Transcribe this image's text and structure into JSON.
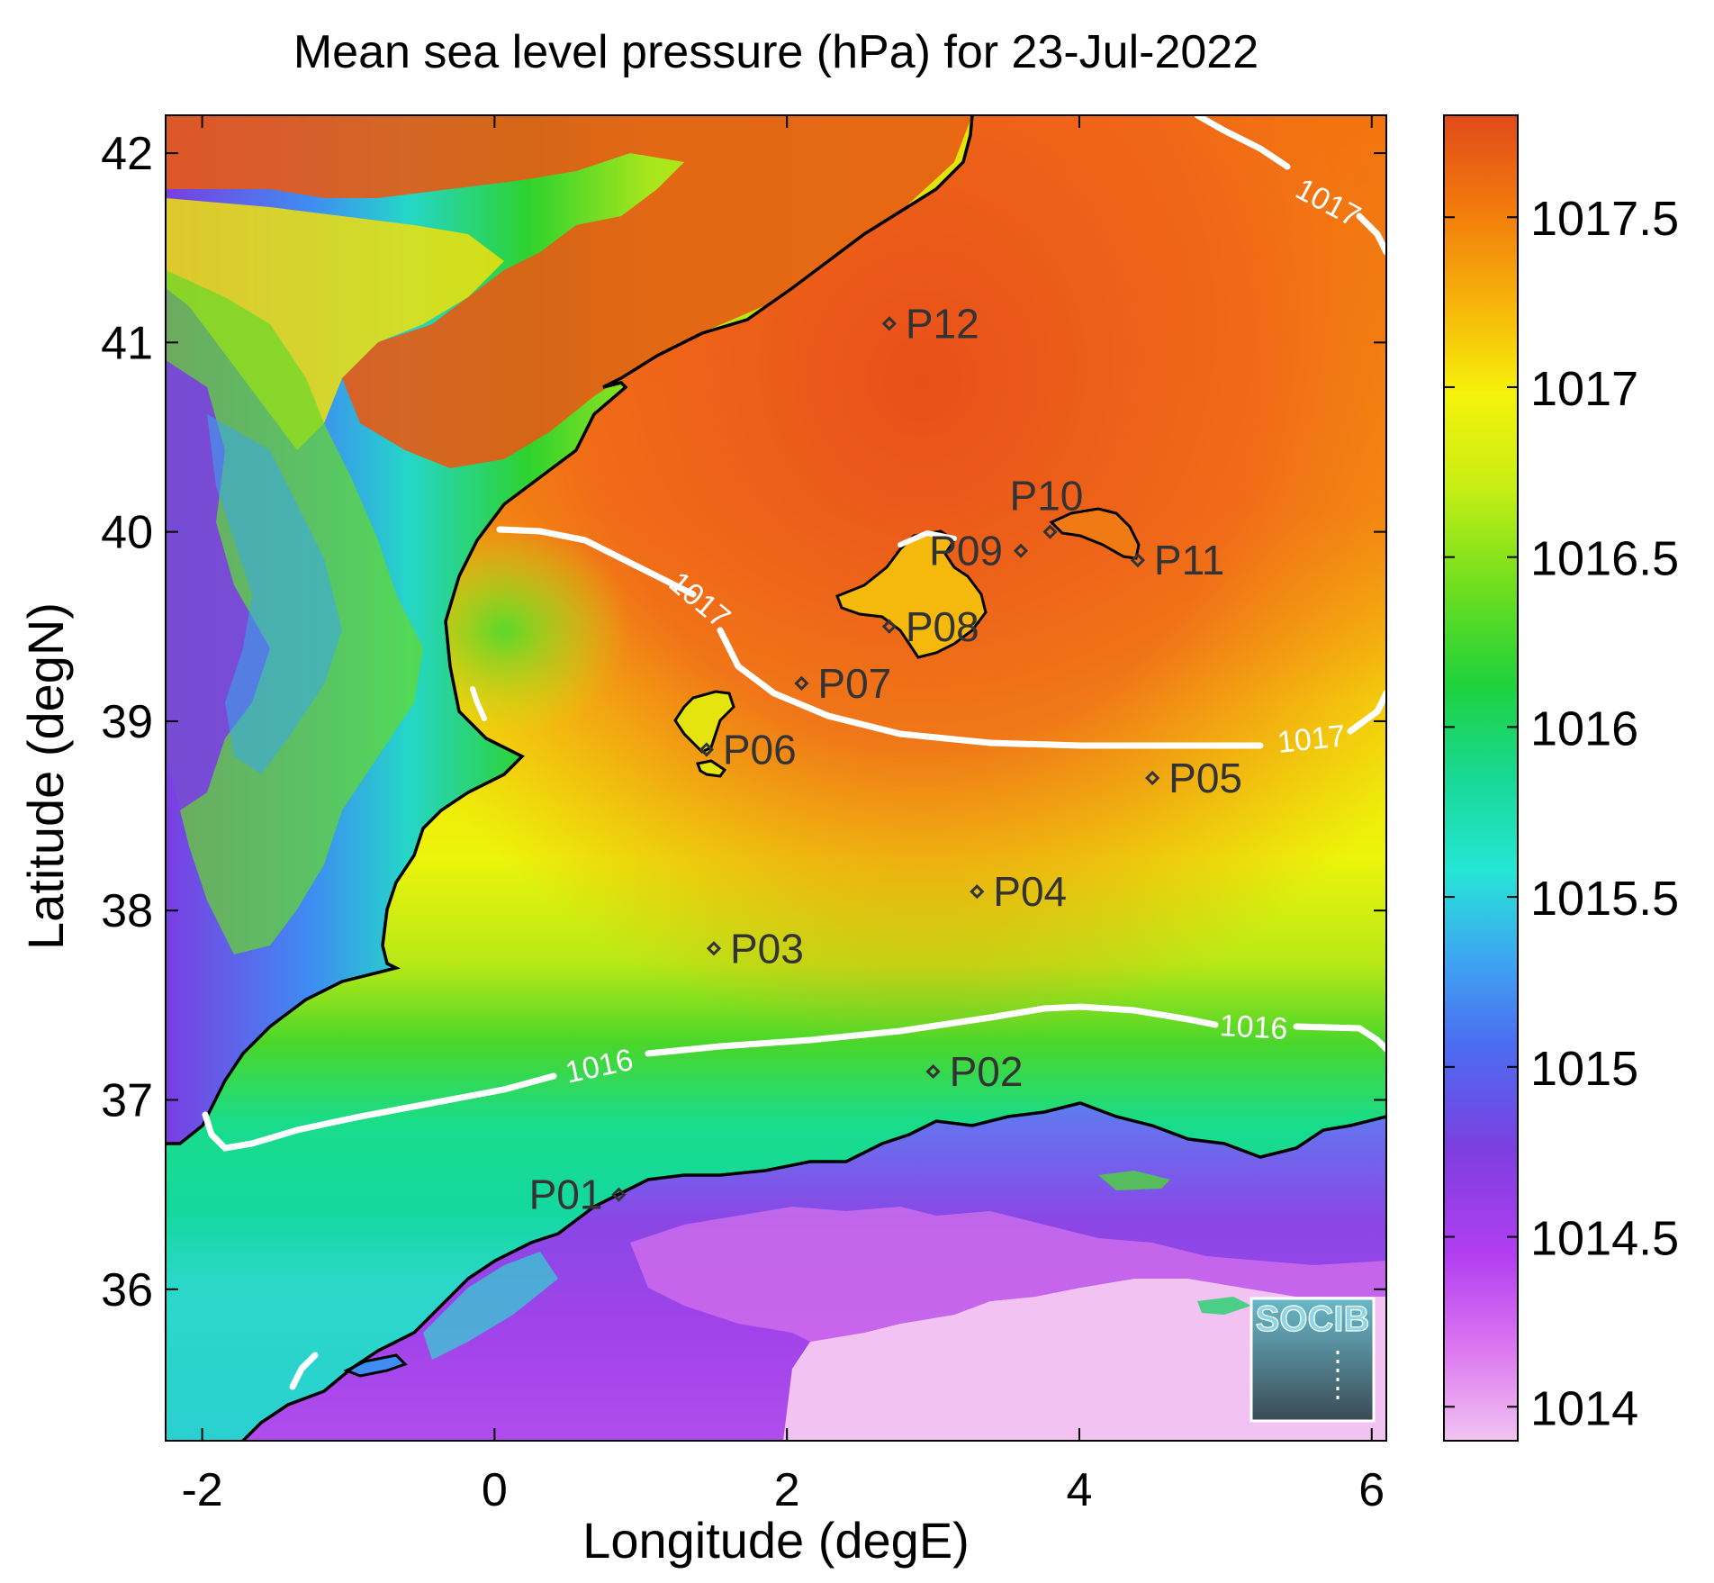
{
  "title": "Mean sea level pressure (hPa) for 23-Jul-2022",
  "xlabel": "Longitude (degE)",
  "ylabel": "Latitude (degN)",
  "map": {
    "xlim": [
      -2.25,
      6.1
    ],
    "ylim": [
      35.2,
      42.2
    ],
    "xticks": [
      -2,
      0,
      2,
      4,
      6
    ],
    "yticks": [
      36,
      37,
      38,
      39,
      40,
      41,
      42
    ],
    "xtick_labels": [
      "-2",
      "0",
      "2",
      "4",
      "6"
    ],
    "ytick_labels": [
      "36",
      "37",
      "38",
      "39",
      "40",
      "41",
      "42"
    ]
  },
  "colorbar": {
    "range": [
      1013.9,
      1017.8
    ],
    "ticks": [
      1014,
      1014.5,
      1015,
      1015.5,
      1016,
      1016.5,
      1017,
      1017.5
    ],
    "tick_labels": [
      "1014",
      "1014.5",
      "1015",
      "1015.5",
      "1016",
      "1016.5",
      "1017",
      "1017.5"
    ],
    "colors": [
      "#f2c3f2",
      "#c844f2",
      "#7d3ee0",
      "#3f8cf2",
      "#25e6d6",
      "#19d28c",
      "#2ed22e",
      "#a8e61c",
      "#f4f40a",
      "#f7b20a",
      "#f2700a",
      "#e04a1a"
    ]
  },
  "contours": [
    {
      "level": "1017",
      "label": "1017"
    },
    {
      "level": "1016",
      "label": "1016"
    }
  ],
  "stations": [
    {
      "id": "P01",
      "lon": 0.85,
      "lat": 36.5
    },
    {
      "id": "P02",
      "lon": 3.0,
      "lat": 37.15
    },
    {
      "id": "P03",
      "lon": 1.5,
      "lat": 37.8
    },
    {
      "id": "P04",
      "lon": 3.3,
      "lat": 38.1
    },
    {
      "id": "P05",
      "lon": 4.5,
      "lat": 38.7
    },
    {
      "id": "P06",
      "lon": 1.45,
      "lat": 38.85
    },
    {
      "id": "P07",
      "lon": 2.1,
      "lat": 39.2
    },
    {
      "id": "P08",
      "lon": 2.7,
      "lat": 39.5
    },
    {
      "id": "P09",
      "lon": 3.6,
      "lat": 39.9
    },
    {
      "id": "P10",
      "lon": 3.8,
      "lat": 40.0
    },
    {
      "id": "P11",
      "lon": 4.4,
      "lat": 39.85
    },
    {
      "id": "P12",
      "lon": 2.7,
      "lat": 41.1
    }
  ],
  "logo": "SOCIB"
}
